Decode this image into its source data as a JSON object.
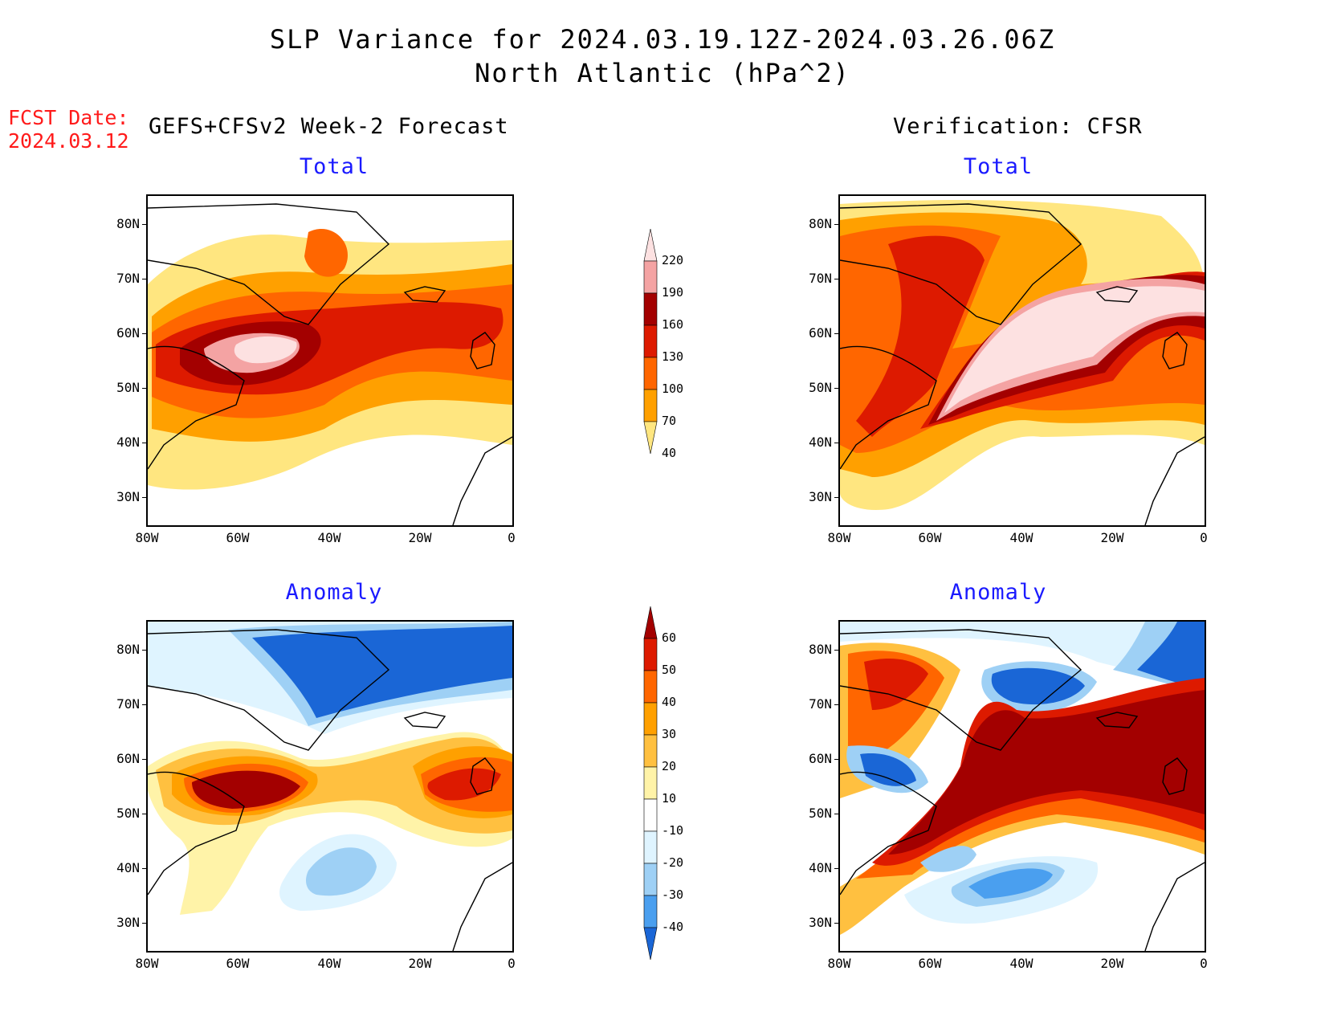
{
  "title_line1": "SLP Variance for 2024.03.19.12Z-2024.03.26.06Z",
  "title_line2": "North Atlantic (hPa^2)",
  "fcst_label": "FCST Date:",
  "fcst_date": "2024.03.12",
  "left_header": "GEFS+CFSv2 Week-2 Forecast",
  "right_header": "Verification: CFSR",
  "total_label": "Total",
  "anomaly_label": "Anomaly",
  "lat_labels": [
    "80N",
    "70N",
    "60N",
    "50N",
    "40N",
    "30N"
  ],
  "lon_labels": [
    "80W",
    "60W",
    "40W",
    "20W",
    "0"
  ],
  "total_colorbar": {
    "levels": [
      "220",
      "190",
      "160",
      "130",
      "100",
      "70",
      "40"
    ],
    "colors": [
      "#fde1e1",
      "#f4a3a3",
      "#a30000",
      "#dd1a00",
      "#ff6600",
      "#ffa000",
      "#ffe680"
    ]
  },
  "anomaly_colorbar": {
    "levels": [
      "60",
      "50",
      "40",
      "30",
      "20",
      "10",
      "-10",
      "-20",
      "-30",
      "-40"
    ],
    "colors": [
      "#a30000",
      "#dd1a00",
      "#ff6600",
      "#ffa000",
      "#ffc040",
      "#fff3a8",
      "#ffffff",
      "#dff4ff",
      "#9ed0f5",
      "#4a9fef",
      "#1a66d6"
    ]
  },
  "colors": {
    "title": "#000000",
    "fcst": "#ff1a1a",
    "subtitle": "#1a1aff"
  }
}
